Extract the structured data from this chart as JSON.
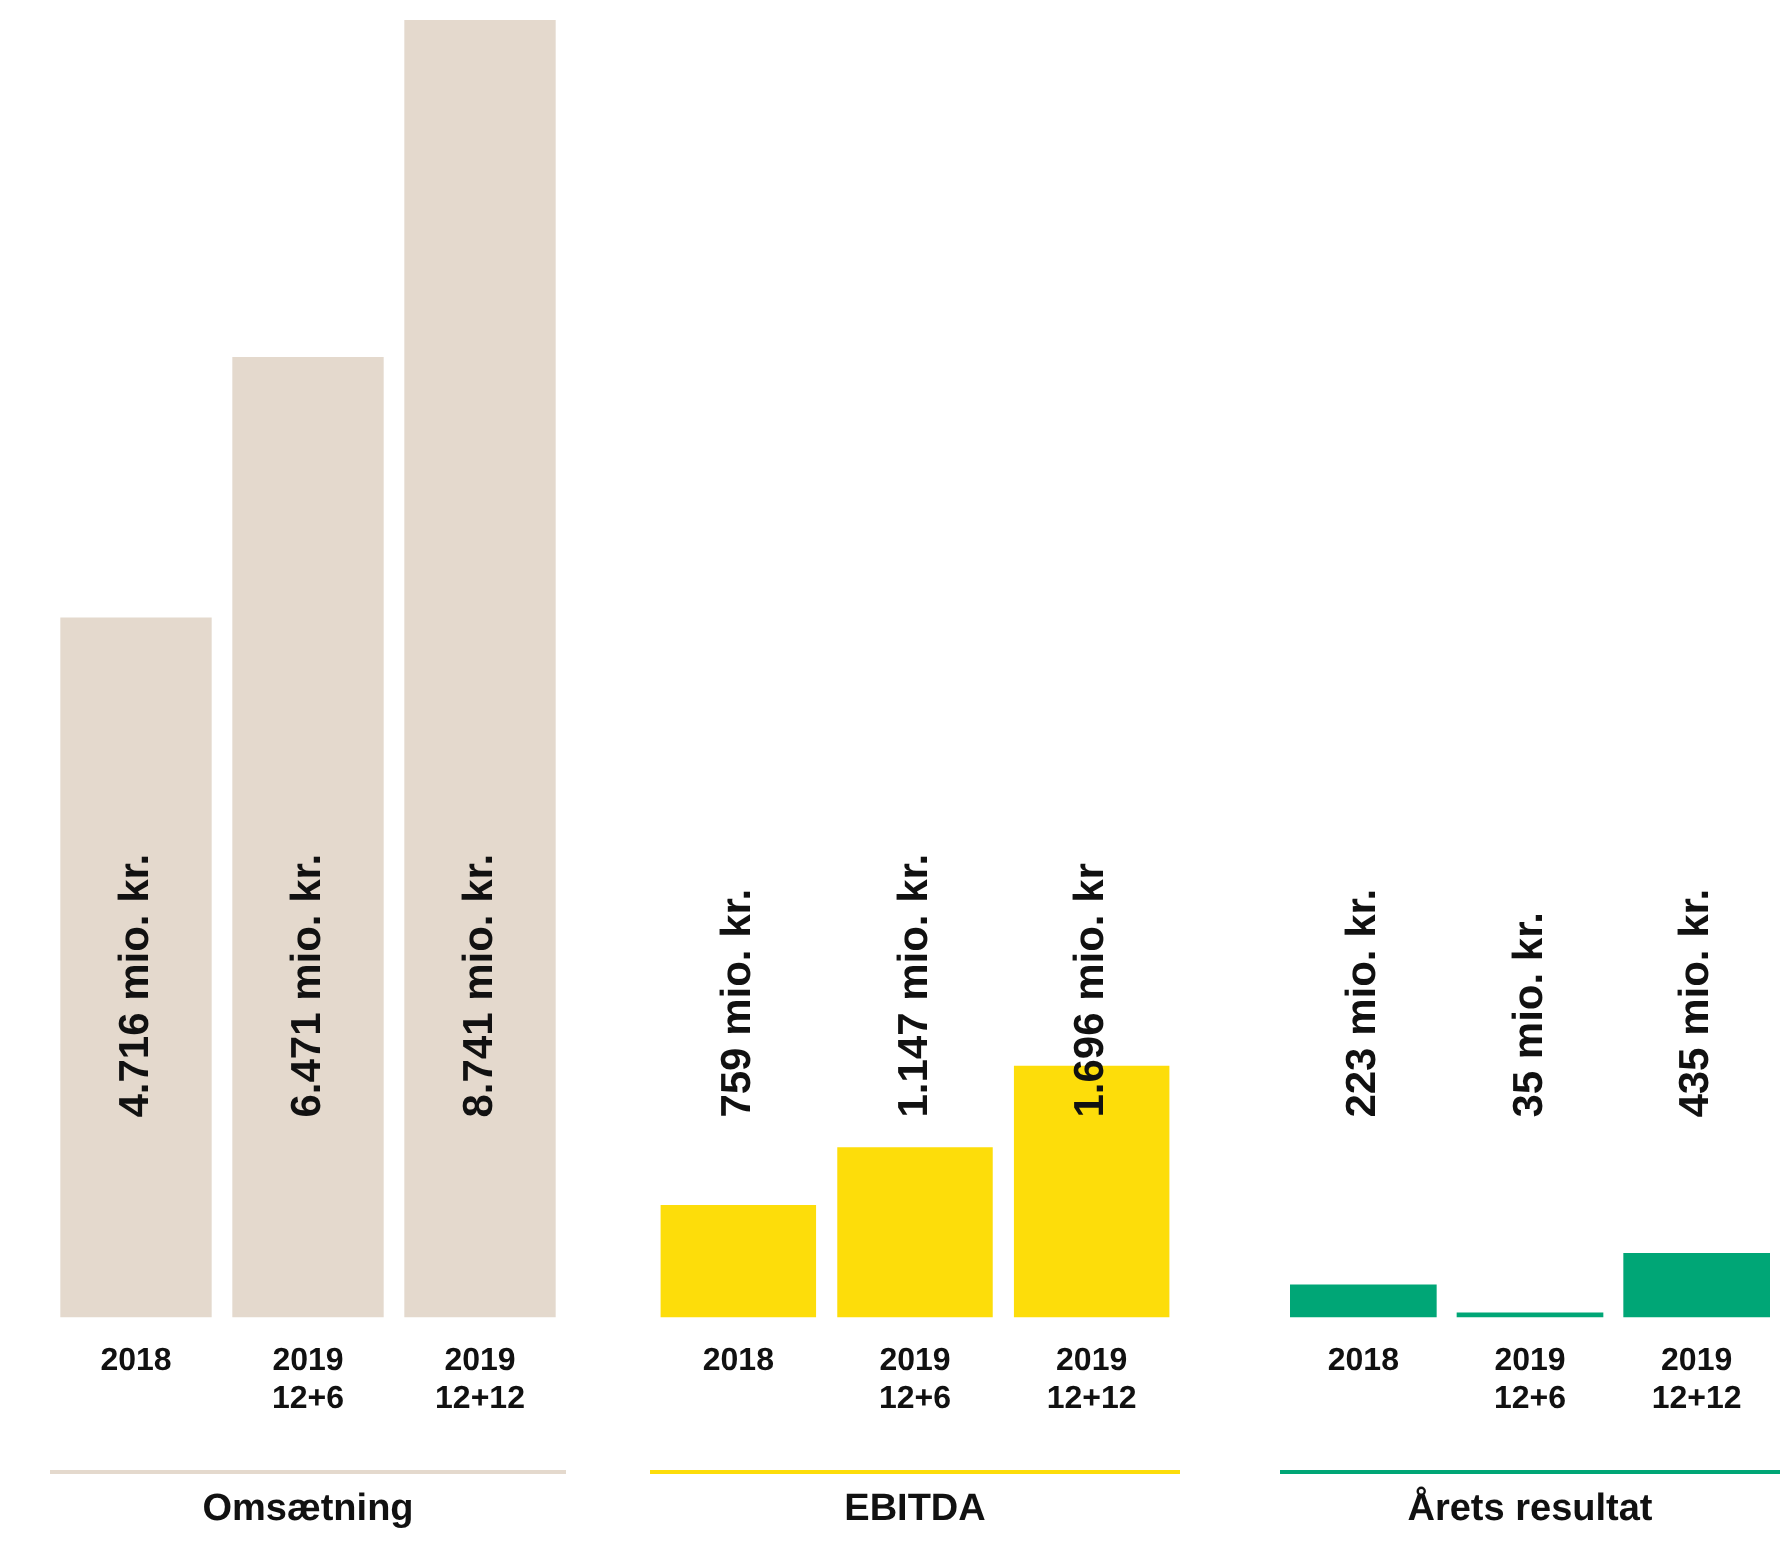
{
  "chart_data": [
    {
      "type": "bar",
      "xlabel": "Omsætning",
      "categories": [
        "2018",
        "2019\n12+6",
        "2019\n12+12"
      ],
      "values": [
        4716,
        6471,
        8741
      ],
      "color": "#e4d9cd",
      "value_labels": [
        "4.716 mio. kr.",
        "6.471 mio. kr.",
        "8.741 mio. kr."
      ],
      "grid": false,
      "legend": false
    },
    {
      "type": "bar",
      "xlabel": "EBITDA",
      "categories": [
        "2018",
        "2019\n12+6",
        "2019\n12+12"
      ],
      "values": [
        759,
        1147,
        1696
      ],
      "color": "#fddd0a",
      "value_labels": [
        "759 mio. kr.",
        "1.147 mio. kr.",
        "1.696 mio. kr"
      ],
      "grid": false,
      "legend": false
    },
    {
      "type": "bar",
      "xlabel": "Årets resultat",
      "categories": [
        "2018",
        "2019\n12+6",
        "2019\n12+12"
      ],
      "values": [
        223,
        35,
        435
      ],
      "color": "#00a676",
      "value_labels": [
        "223 mio. kr.",
        "35 mio. kr.",
        "435 mio. kr."
      ],
      "grid": false,
      "legend": false
    }
  ]
}
